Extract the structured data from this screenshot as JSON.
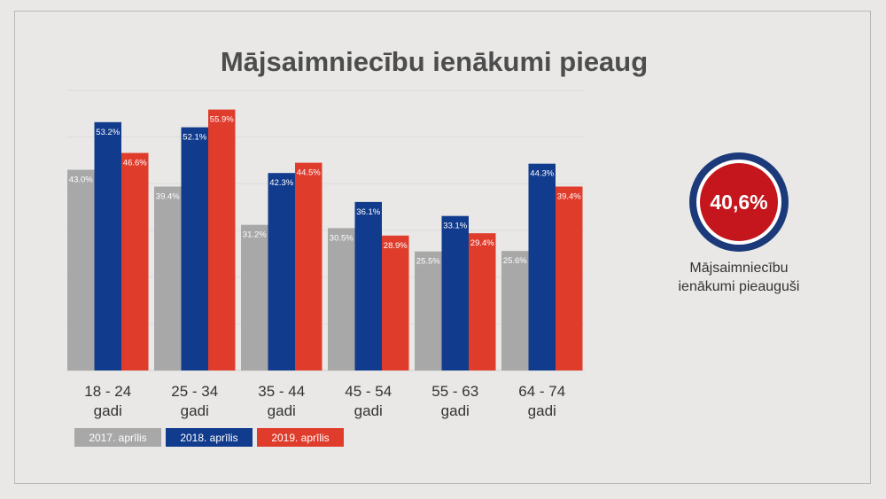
{
  "title": "Mājsaimniecību ienākumi pieaug",
  "kpi": {
    "value": "40,6%",
    "caption_line1": "Mājsaimniecību",
    "caption_line2": "ienākumi pieauguši",
    "ring_color": "#1c3a7a",
    "fill_color": "#c4161c"
  },
  "chart_data": {
    "type": "bar",
    "title": "Mājsaimniecību ienākumi pieaug",
    "categories": [
      [
        "18 - 24",
        "gadi"
      ],
      [
        "25 - 34",
        "gadi"
      ],
      [
        "35 - 44",
        "gadi"
      ],
      [
        "45 - 54",
        "gadi"
      ],
      [
        "55 - 63",
        "gadi"
      ],
      [
        "64 - 74",
        "gadi"
      ]
    ],
    "series": [
      {
        "name": "2017. aprīlis",
        "color": "#a8a8a8",
        "values": [
          43.0,
          39.4,
          31.2,
          30.5,
          25.5,
          25.6
        ],
        "labels": [
          "43.0%",
          "39.4%",
          "31.2%",
          "30.5%",
          "25.5%",
          "25.6%"
        ]
      },
      {
        "name": "2018. aprīlis",
        "color": "#113b8c",
        "values": [
          53.2,
          52.1,
          42.3,
          36.1,
          33.1,
          44.3
        ],
        "labels": [
          "53.2%",
          "52.1%",
          "42.3%",
          "36.1%",
          "33.1%",
          "44.3%"
        ]
      },
      {
        "name": "2019. aprīlis",
        "color": "#e03c2c",
        "values": [
          46.6,
          55.9,
          44.5,
          28.9,
          29.4,
          39.4
        ],
        "labels": [
          "46.6%",
          "55.9%",
          "44.5%",
          "28.9%",
          "29.4%",
          "39.4%"
        ]
      }
    ],
    "ylim": [
      0,
      60
    ],
    "grid": true,
    "legend_position": "bottom-left"
  }
}
